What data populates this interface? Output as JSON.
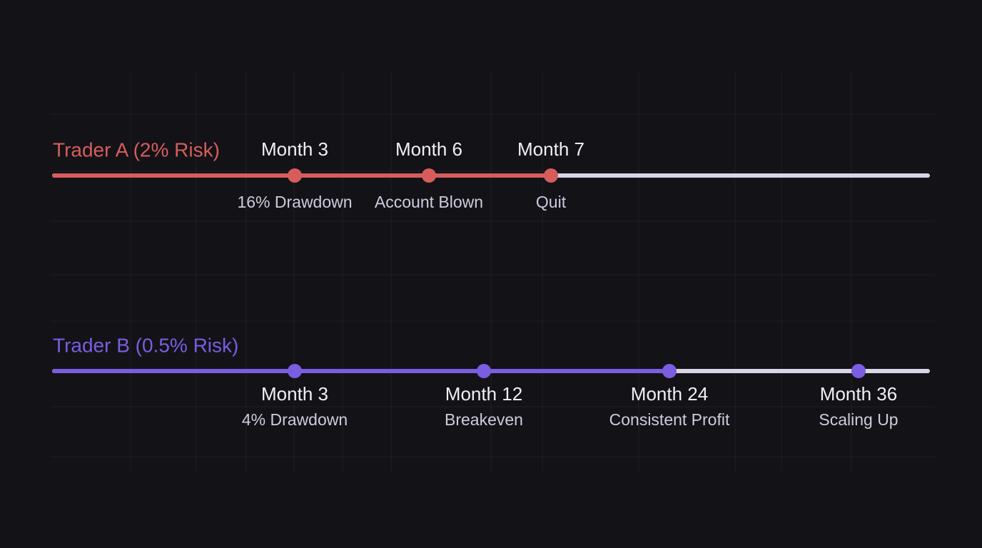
{
  "timelines": [
    {
      "label": "Trader A (2% Risk)",
      "events": [
        {
          "month": "Month 3",
          "note": "16% Drawdown"
        },
        {
          "month": "Month 6",
          "note": "Account Blown"
        },
        {
          "month": "Month 7",
          "note": "Quit"
        }
      ]
    },
    {
      "label": "Trader B (0.5% Risk)",
      "events": [
        {
          "month": "Month 3",
          "note": "4% Drawdown"
        },
        {
          "month": "Month 12",
          "note": "Breakeven"
        },
        {
          "month": "Month 24",
          "note": "Consistent Profit"
        },
        {
          "month": "Month 36",
          "note": "Scaling Up"
        }
      ]
    }
  ]
}
